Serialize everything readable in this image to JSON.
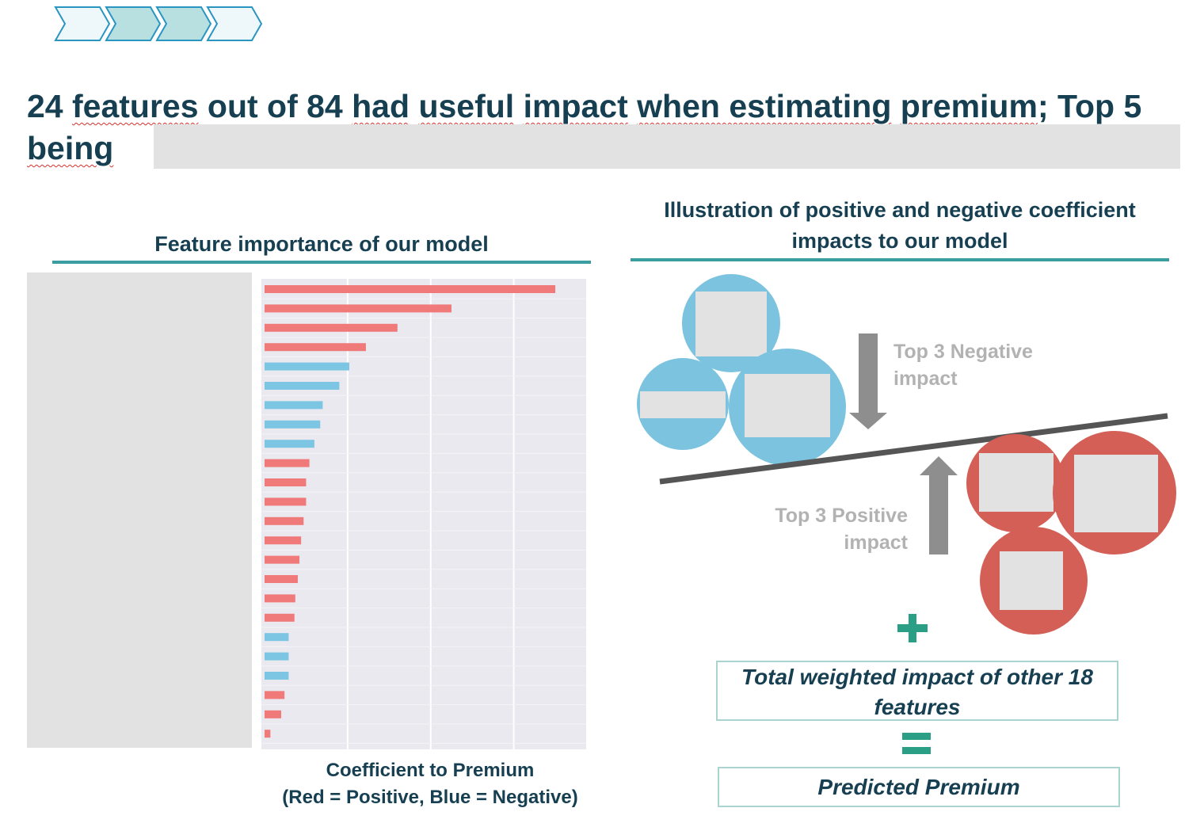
{
  "headline": {
    "segments": [
      {
        "text": "24 ",
        "spell": false
      },
      {
        "text": "features",
        "spell": true
      },
      {
        "text": " out of 84 ",
        "spell": false
      },
      {
        "text": "had",
        "spell": true
      },
      {
        "text": " ",
        "spell": false
      },
      {
        "text": "useful",
        "spell": true
      },
      {
        "text": " ",
        "spell": false
      },
      {
        "text": "impact",
        "spell": true
      },
      {
        "text": " ",
        "spell": false
      },
      {
        "text": "when estimating",
        "spell": true
      },
      {
        "text": " ",
        "spell": false
      },
      {
        "text": "premium",
        "spell": true
      },
      {
        "text": "; Top 5 ",
        "spell": false
      },
      {
        "text": "being",
        "spell": true
      }
    ]
  },
  "left_panel": {
    "title": "Feature importance of our model",
    "caption_line1": "Coefficient to Premium",
    "caption_line2": "(Red = Positive, Blue = Negative)"
  },
  "right_panel": {
    "title_line1": "Illustration of positive and negative coefficient",
    "title_line2": "impacts to our model",
    "negative_label_line1": "Top 3 Negative",
    "negative_label_line2": "impact",
    "positive_label_line1": "Top 3 Positive",
    "positive_label_line2": "impact",
    "other_features_box": "Total weighted impact of other 18 features",
    "result_box": "Predicted Premium",
    "plus_symbol": "+",
    "equals_symbol": "="
  },
  "colors": {
    "positive": "#f07a7a",
    "negative": "#7cc6e4",
    "circle_negative": "#7cc3df",
    "circle_positive": "#d35f56",
    "accent": "#3a9ea0",
    "operator": "#2a9f86"
  },
  "chart_data": {
    "type": "bar",
    "orientation": "horizontal",
    "xlabel": "Coefficient to Premium",
    "legend_note": "(Red = Positive, Blue = Negative)",
    "grid": true,
    "xlim": [
      0,
      3.7
    ],
    "gridlines": [
      1,
      2,
      3
    ],
    "values": [
      3.5,
      2.25,
      1.6,
      1.22,
      1.02,
      0.9,
      0.7,
      0.67,
      0.6,
      0.54,
      0.5,
      0.5,
      0.47,
      0.44,
      0.42,
      0.4,
      0.37,
      0.36,
      0.29,
      0.29,
      0.29,
      0.24,
      0.2,
      0.07
    ],
    "signs": [
      "positive",
      "positive",
      "positive",
      "positive",
      "negative",
      "negative",
      "negative",
      "negative",
      "negative",
      "positive",
      "positive",
      "positive",
      "positive",
      "positive",
      "positive",
      "positive",
      "positive",
      "positive",
      "negative",
      "negative",
      "negative",
      "positive",
      "positive",
      "positive"
    ]
  }
}
